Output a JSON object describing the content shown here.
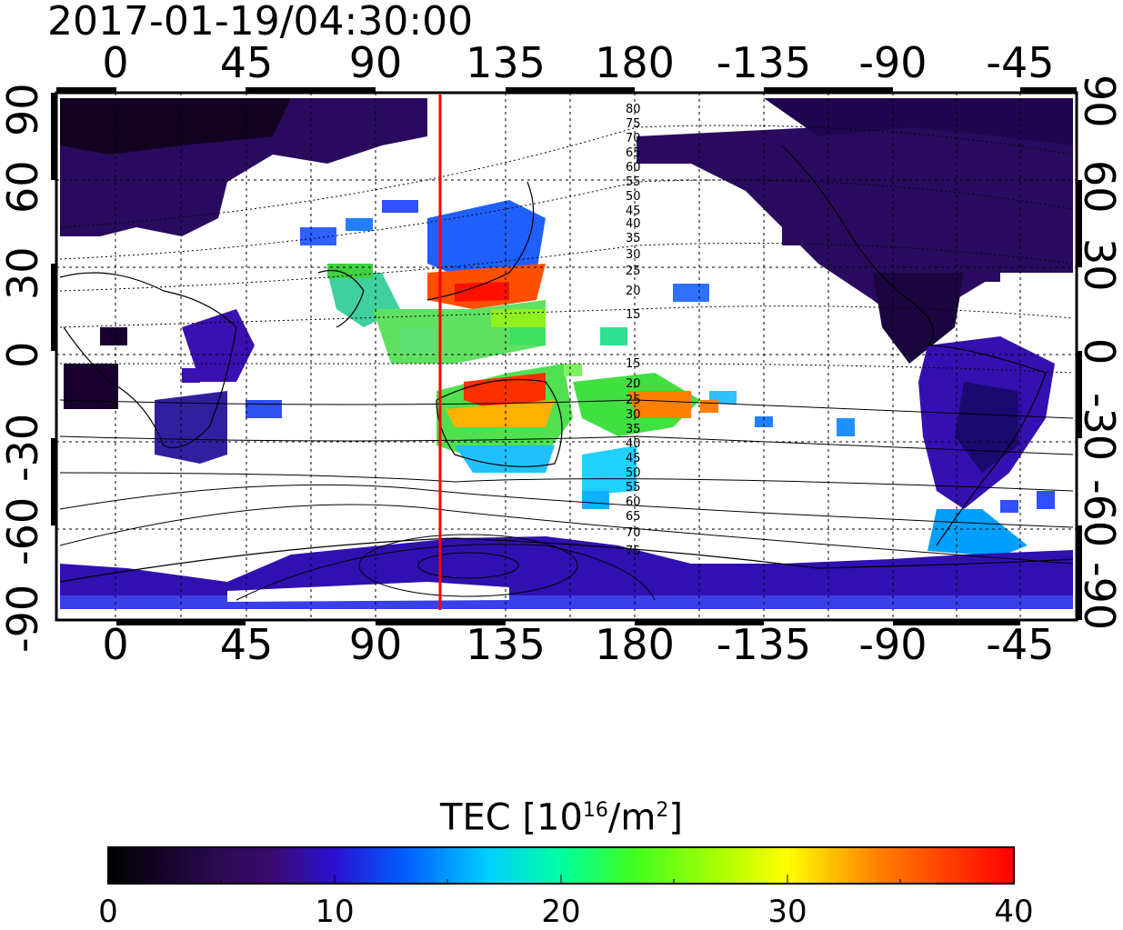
{
  "title": "2017-01-19/04:30:00",
  "map": {
    "lon_ticks_top": [
      "0",
      "45",
      "90",
      "135",
      "180",
      "-135",
      "-90",
      "-45"
    ],
    "lon_ticks_bottom": [
      "0",
      "45",
      "90",
      "135",
      "180",
      "-135",
      "-90",
      "-45"
    ],
    "lat_ticks_left": [
      "90",
      "60",
      "30",
      "0",
      "-30",
      "-60",
      "-90"
    ],
    "lat_ticks_right": [
      "90",
      "60",
      "30",
      "0",
      "-30",
      "-60",
      "-90"
    ],
    "contour_labels_north": [
      "80",
      "75",
      "70",
      "65",
      "60",
      "55",
      "50",
      "45",
      "40",
      "35",
      "30",
      "25",
      "20",
      "15"
    ],
    "contour_labels_south": [
      "15",
      "20",
      "25",
      "30",
      "35",
      "40",
      "45",
      "50",
      "55",
      "60",
      "65",
      "70",
      "75"
    ],
    "meridian_line_color": "#ff0000",
    "meridian_longitude": 112.5
  },
  "colorbar": {
    "label_main": "TEC  [10",
    "label_sup1": "16",
    "label_mid": "/m",
    "label_sup2": "2",
    "label_end": "]",
    "ticks": [
      "0",
      "10",
      "20",
      "30",
      "40"
    ],
    "range": [
      0,
      40
    ],
    "colors": [
      "#000000",
      "#3a0a5c",
      "#3300aa",
      "#0040ff",
      "#00c0ff",
      "#00ff80",
      "#80ff00",
      "#ffff00",
      "#ff8000",
      "#ff0000"
    ]
  }
}
